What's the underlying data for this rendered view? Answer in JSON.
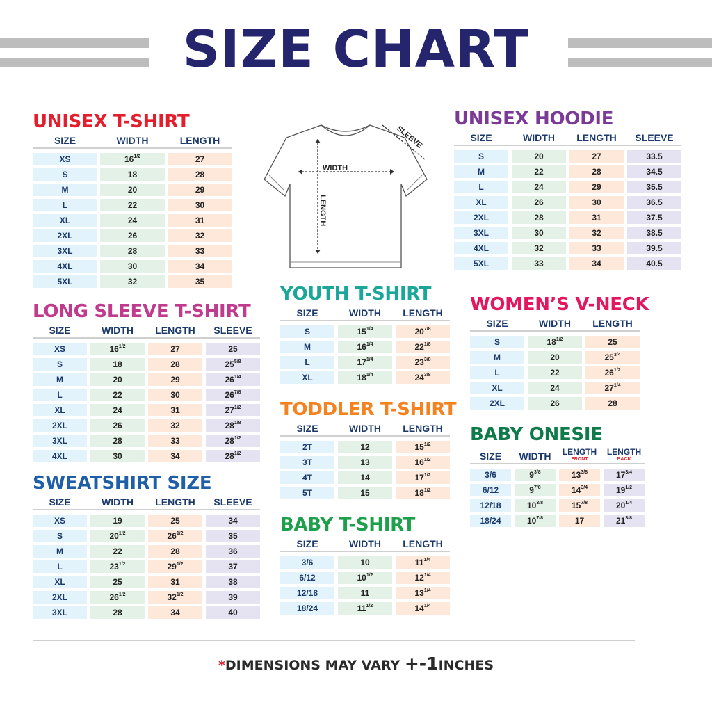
{
  "title": "SIZE CHART",
  "colors": {
    "navy": "#25256e",
    "header_text": "#1b3a6b",
    "size_cell": "#e3f3fb",
    "width_cell": "#e3f1e6",
    "length_cell": "#fde8da",
    "sleeve_cell": "#e5e3f2"
  },
  "diagram": {
    "width_label": "WIDTH",
    "length_label": "LENGTH",
    "sleeve_label": "SLEEVE"
  },
  "tables": [
    {
      "id": "unisex-tshirt",
      "title": "UNISEX T-SHIRT",
      "color": "#e31e2d",
      "headers": [
        "SIZE",
        "WIDTH",
        "LENGTH"
      ],
      "rows": [
        [
          "XS",
          "16 1/2",
          "27"
        ],
        [
          "S",
          "18",
          "28"
        ],
        [
          "M",
          "20",
          "29"
        ],
        [
          "L",
          "22",
          "30"
        ],
        [
          "XL",
          "24",
          "31"
        ],
        [
          "2XL",
          "26",
          "32"
        ],
        [
          "3XL",
          "28",
          "33"
        ],
        [
          "4XL",
          "30",
          "34"
        ],
        [
          "5XL",
          "32",
          "35"
        ]
      ]
    },
    {
      "id": "unisex-hoodie",
      "title": "UNISEX HOODIE",
      "color": "#7b3a96",
      "headers": [
        "SIZE",
        "WIDTH",
        "LENGTH",
        "SLEEVE"
      ],
      "rows": [
        [
          "S",
          "20",
          "27",
          "33.5"
        ],
        [
          "M",
          "22",
          "28",
          "34.5"
        ],
        [
          "L",
          "24",
          "29",
          "35.5"
        ],
        [
          "XL",
          "26",
          "30",
          "36.5"
        ],
        [
          "2XL",
          "28",
          "31",
          "37.5"
        ],
        [
          "3XL",
          "30",
          "32",
          "38.5"
        ],
        [
          "4XL",
          "32",
          "33",
          "39.5"
        ],
        [
          "5XL",
          "33",
          "34",
          "40.5"
        ]
      ]
    },
    {
      "id": "long-sleeve-tshirt",
      "title": "LONG SLEEVE T-SHIRT",
      "color": "#c03a8e",
      "headers": [
        "SIZE",
        "WIDTH",
        "LENGTH",
        "SLEEVE"
      ],
      "rows": [
        [
          "XS",
          "16 1/2",
          "27",
          "25"
        ],
        [
          "S",
          "18",
          "28",
          "25 5/8"
        ],
        [
          "M",
          "20",
          "29",
          "26 1/4"
        ],
        [
          "L",
          "22",
          "30",
          "26 7/8"
        ],
        [
          "XL",
          "24",
          "31",
          "27 1/2"
        ],
        [
          "2XL",
          "26",
          "32",
          "28 1/8"
        ],
        [
          "3XL",
          "28",
          "33",
          "28 1/2"
        ],
        [
          "4XL",
          "30",
          "34",
          "28 1/2"
        ]
      ]
    },
    {
      "id": "sweatshirt",
      "title": "SWEATSHIRT SIZE",
      "color": "#1f5fa8",
      "headers": [
        "SIZE",
        "WIDTH",
        "LENGTH",
        "SLEEVE"
      ],
      "rows": [
        [
          "XS",
          "19",
          "25",
          "34"
        ],
        [
          "S",
          "20 1/2",
          "26 1/2",
          "35"
        ],
        [
          "M",
          "22",
          "28",
          "36"
        ],
        [
          "L",
          "23 1/2",
          "29 1/2",
          "37"
        ],
        [
          "XL",
          "25",
          "31",
          "38"
        ],
        [
          "2XL",
          "26 1/2",
          "32 1/2",
          "39"
        ],
        [
          "3XL",
          "28",
          "34",
          "40"
        ]
      ]
    },
    {
      "id": "youth-tshirt",
      "title": "YOUTH T-SHIRT",
      "color": "#1aa79a",
      "headers": [
        "SIZE",
        "WIDTH",
        "LENGTH"
      ],
      "rows": [
        [
          "S",
          "15 1/4",
          "20 7/8"
        ],
        [
          "M",
          "16 1/4",
          "22 1/8"
        ],
        [
          "L",
          "17 1/4",
          "23 3/8"
        ],
        [
          "XL",
          "18 1/4",
          "24 3/8"
        ]
      ]
    },
    {
      "id": "toddler-tshirt",
      "title": "TODDLER T-SHIRT",
      "color": "#f58220",
      "headers": [
        "SIZE",
        "WIDTH",
        "LENGTH"
      ],
      "rows": [
        [
          "2T",
          "12",
          "15 1/2"
        ],
        [
          "3T",
          "13",
          "16 1/2"
        ],
        [
          "4T",
          "14",
          "17 1/2"
        ],
        [
          "5T",
          "15",
          "18 1/2"
        ]
      ]
    },
    {
      "id": "baby-tshirt",
      "title": "BABY T-SHIRT",
      "color": "#1ea04a",
      "headers": [
        "SIZE",
        "WIDTH",
        "LENGTH"
      ],
      "rows": [
        [
          "3/6",
          "10",
          "11 1/4"
        ],
        [
          "6/12",
          "10 1/2",
          "12 1/4"
        ],
        [
          "12/18",
          "11",
          "13 1/4"
        ],
        [
          "18/24",
          "11 1/2",
          "14 1/4"
        ]
      ]
    },
    {
      "id": "womens-vneck",
      "title": "WOMEN’S V-NECK",
      "color": "#e3175f",
      "headers": [
        "SIZE",
        "WIDTH",
        "LENGTH"
      ],
      "rows": [
        [
          "S",
          "18 1/2",
          "25"
        ],
        [
          "M",
          "20",
          "25 3/4"
        ],
        [
          "L",
          "22",
          "26 1/2"
        ],
        [
          "XL",
          "24",
          "27 1/4"
        ],
        [
          "2XL",
          "26",
          "28"
        ]
      ]
    },
    {
      "id": "baby-onesie",
      "title": "BABY ONESIE",
      "color": "#0f7a4a",
      "headers": [
        "SIZE",
        "WIDTH",
        "LENGTH",
        "LENGTH"
      ],
      "subheaders": [
        "",
        "",
        "FRONT",
        "BACK"
      ],
      "rows": [
        [
          "3/6",
          "9 3/8",
          "13 3/8",
          "17 3/4"
        ],
        [
          "6/12",
          "9 7/8",
          "14 3/4",
          "19 1/2"
        ],
        [
          "12/18",
          "10 3/8",
          "15 7/8",
          "20 1/4"
        ],
        [
          "18/24",
          "10 7/8",
          "17",
          "21 3/8"
        ]
      ]
    }
  ],
  "footer": {
    "asterisk": "*",
    "text": "DIMENSIONS MAY VARY ",
    "plus_minus": "+-1",
    "unit": "INCHES"
  }
}
